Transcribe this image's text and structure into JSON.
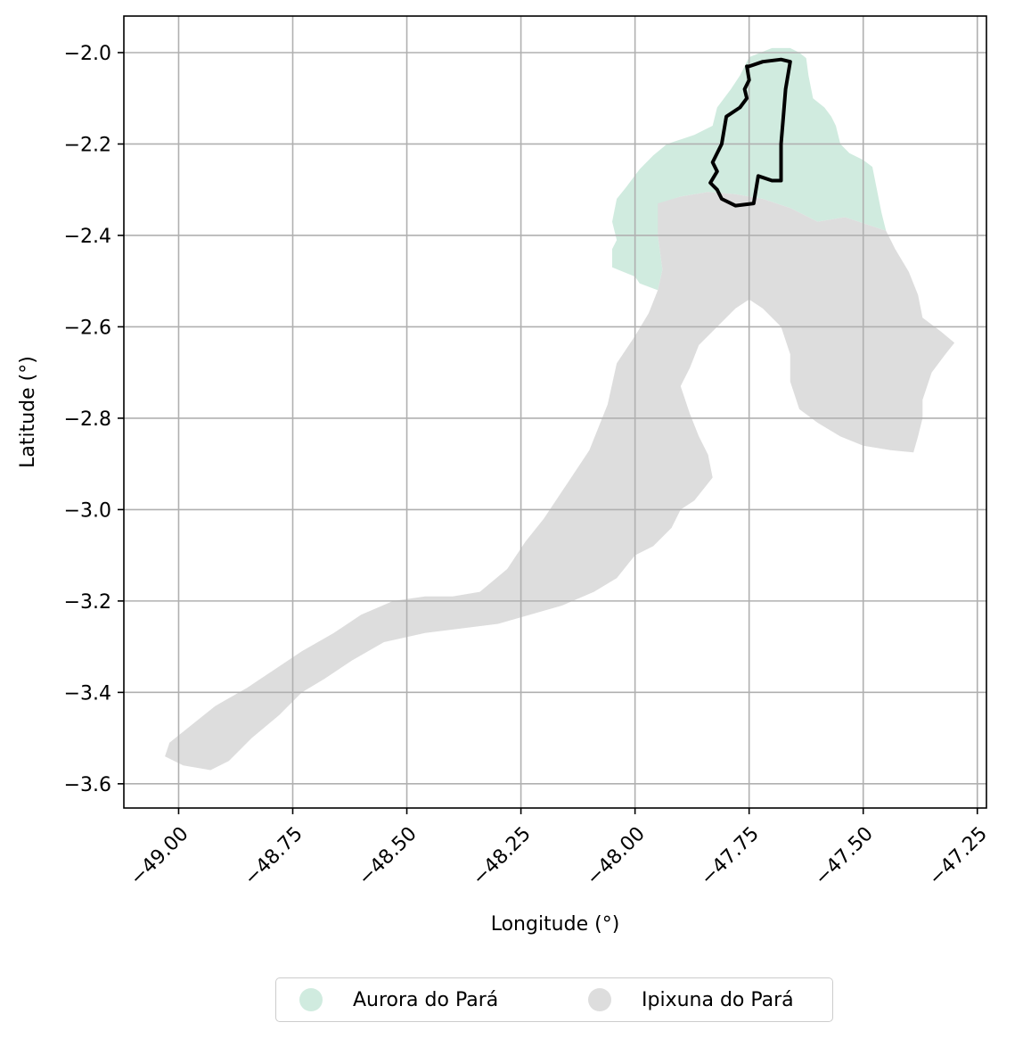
{
  "chart_data": {
    "type": "map",
    "xlabel": "Longitude (°)",
    "ylabel": "Latitude (°)",
    "xlim": [
      -49.12,
      -47.23
    ],
    "ylim": [
      -3.653,
      -1.92
    ],
    "xticks": [
      -49.0,
      -48.75,
      -48.5,
      -48.25,
      -48.0,
      -47.75,
      -47.5,
      -47.25
    ],
    "xtick_labels": [
      "−49.00",
      "−48.75",
      "−48.50",
      "−48.25",
      "−48.00",
      "−47.75",
      "−47.50",
      "−47.25"
    ],
    "yticks": [
      -2.0,
      -2.2,
      -2.4,
      -2.6,
      -2.8,
      -3.0,
      -3.2,
      -3.4,
      -3.6
    ],
    "ytick_labels": [
      "−2.0",
      "−2.2",
      "−2.4",
      "−2.6",
      "−2.8",
      "−3.0",
      "−3.2",
      "−3.4",
      "−3.6"
    ],
    "grid": true,
    "legend_placement": "bottom-center",
    "regions": [
      {
        "name": "Aurora do Pará",
        "color": "#d0ebdf",
        "outline": [
          [
            -47.64,
            -2.0
          ],
          [
            -47.625,
            -2.012
          ],
          [
            -47.62,
            -2.05
          ],
          [
            -47.61,
            -2.1
          ],
          [
            -47.585,
            -2.12
          ],
          [
            -47.57,
            -2.14
          ],
          [
            -47.56,
            -2.16
          ],
          [
            -47.55,
            -2.2
          ],
          [
            -47.53,
            -2.22
          ],
          [
            -47.5,
            -2.235
          ],
          [
            -47.48,
            -2.25
          ],
          [
            -47.47,
            -2.3
          ],
          [
            -47.46,
            -2.35
          ],
          [
            -47.45,
            -2.39
          ],
          [
            -47.54,
            -2.36
          ],
          [
            -47.6,
            -2.37
          ],
          [
            -47.66,
            -2.34
          ],
          [
            -47.72,
            -2.32
          ],
          [
            -47.78,
            -2.31
          ],
          [
            -47.84,
            -2.305
          ],
          [
            -47.9,
            -2.315
          ],
          [
            -47.945,
            -2.33
          ],
          [
            -47.95,
            -2.4
          ],
          [
            -47.94,
            -2.475
          ],
          [
            -47.95,
            -2.52
          ],
          [
            -47.99,
            -2.505
          ],
          [
            -48.0,
            -2.49
          ],
          [
            -48.05,
            -2.47
          ],
          [
            -48.05,
            -2.43
          ],
          [
            -48.04,
            -2.41
          ],
          [
            -48.05,
            -2.37
          ],
          [
            -48.04,
            -2.32
          ],
          [
            -48.02,
            -2.295
          ],
          [
            -47.99,
            -2.255
          ],
          [
            -47.96,
            -2.225
          ],
          [
            -47.93,
            -2.2
          ],
          [
            -47.87,
            -2.18
          ],
          [
            -47.83,
            -2.16
          ],
          [
            -47.82,
            -2.12
          ],
          [
            -47.79,
            -2.08
          ],
          [
            -47.77,
            -2.05
          ],
          [
            -47.75,
            -2.01
          ],
          [
            -47.7,
            -1.99
          ],
          [
            -47.66,
            -1.99
          ]
        ]
      },
      {
        "name": "Ipixuna do Pará",
        "color": "#dddddd",
        "outline": [
          [
            -47.95,
            -2.33
          ],
          [
            -47.9,
            -2.315
          ],
          [
            -47.84,
            -2.305
          ],
          [
            -47.78,
            -2.31
          ],
          [
            -47.72,
            -2.32
          ],
          [
            -47.66,
            -2.34
          ],
          [
            -47.6,
            -2.37
          ],
          [
            -47.54,
            -2.36
          ],
          [
            -47.45,
            -2.39
          ],
          [
            -47.43,
            -2.43
          ],
          [
            -47.4,
            -2.48
          ],
          [
            -47.38,
            -2.53
          ],
          [
            -47.37,
            -2.58
          ],
          [
            -47.33,
            -2.61
          ],
          [
            -47.3,
            -2.635
          ],
          [
            -47.32,
            -2.66
          ],
          [
            -47.35,
            -2.7
          ],
          [
            -47.37,
            -2.76
          ],
          [
            -47.37,
            -2.8
          ],
          [
            -47.38,
            -2.84
          ],
          [
            -47.39,
            -2.875
          ],
          [
            -47.44,
            -2.87
          ],
          [
            -47.5,
            -2.86
          ],
          [
            -47.55,
            -2.84
          ],
          [
            -47.6,
            -2.81
          ],
          [
            -47.64,
            -2.78
          ],
          [
            -47.66,
            -2.72
          ],
          [
            -47.66,
            -2.66
          ],
          [
            -47.68,
            -2.6
          ],
          [
            -47.72,
            -2.56
          ],
          [
            -47.75,
            -2.54
          ],
          [
            -47.78,
            -2.56
          ],
          [
            -47.82,
            -2.6
          ],
          [
            -47.86,
            -2.64
          ],
          [
            -47.88,
            -2.69
          ],
          [
            -47.9,
            -2.73
          ],
          [
            -47.88,
            -2.79
          ],
          [
            -47.86,
            -2.84
          ],
          [
            -47.84,
            -2.88
          ],
          [
            -47.83,
            -2.93
          ],
          [
            -47.87,
            -2.98
          ],
          [
            -47.9,
            -3.0
          ],
          [
            -47.92,
            -3.04
          ],
          [
            -47.96,
            -3.08
          ],
          [
            -48.0,
            -3.1
          ],
          [
            -48.04,
            -3.15
          ],
          [
            -48.09,
            -3.18
          ],
          [
            -48.16,
            -3.21
          ],
          [
            -48.23,
            -3.23
          ],
          [
            -48.3,
            -3.25
          ],
          [
            -48.38,
            -3.26
          ],
          [
            -48.46,
            -3.27
          ],
          [
            -48.55,
            -3.29
          ],
          [
            -48.62,
            -3.33
          ],
          [
            -48.68,
            -3.37
          ],
          [
            -48.73,
            -3.4
          ],
          [
            -48.78,
            -3.45
          ],
          [
            -48.84,
            -3.5
          ],
          [
            -48.89,
            -3.55
          ],
          [
            -48.93,
            -3.57
          ],
          [
            -48.99,
            -3.56
          ],
          [
            -49.03,
            -3.54
          ],
          [
            -49.02,
            -3.51
          ],
          [
            -48.97,
            -3.47
          ],
          [
            -48.92,
            -3.43
          ],
          [
            -48.85,
            -3.39
          ],
          [
            -48.79,
            -3.35
          ],
          [
            -48.73,
            -3.31
          ],
          [
            -48.66,
            -3.27
          ],
          [
            -48.6,
            -3.23
          ],
          [
            -48.53,
            -3.2
          ],
          [
            -48.46,
            -3.19
          ],
          [
            -48.4,
            -3.19
          ],
          [
            -48.34,
            -3.18
          ],
          [
            -48.28,
            -3.13
          ],
          [
            -48.24,
            -3.07
          ],
          [
            -48.2,
            -3.02
          ],
          [
            -48.16,
            -2.96
          ],
          [
            -48.1,
            -2.87
          ],
          [
            -48.06,
            -2.77
          ],
          [
            -48.04,
            -2.68
          ],
          [
            -48.0,
            -2.62
          ],
          [
            -47.97,
            -2.57
          ],
          [
            -47.95,
            -2.52
          ],
          [
            -47.94,
            -2.475
          ],
          [
            -47.95,
            -2.4
          ]
        ]
      }
    ],
    "highlight_outline": {
      "color": "#000000",
      "points": [
        [
          -47.75,
          -2.03
        ],
        [
          -47.72,
          -2.02
        ],
        [
          -47.68,
          -2.015
        ],
        [
          -47.66,
          -2.02
        ],
        [
          -47.67,
          -2.08
        ],
        [
          -47.675,
          -2.14
        ],
        [
          -47.68,
          -2.2
        ],
        [
          -47.68,
          -2.28
        ],
        [
          -47.7,
          -2.28
        ],
        [
          -47.73,
          -2.27
        ],
        [
          -47.74,
          -2.33
        ],
        [
          -47.78,
          -2.335
        ],
        [
          -47.81,
          -2.32
        ],
        [
          -47.82,
          -2.3
        ],
        [
          -47.835,
          -2.285
        ],
        [
          -47.82,
          -2.26
        ],
        [
          -47.83,
          -2.24
        ],
        [
          -47.81,
          -2.2
        ],
        [
          -47.8,
          -2.14
        ],
        [
          -47.77,
          -2.12
        ],
        [
          -47.755,
          -2.1
        ],
        [
          -47.76,
          -2.08
        ],
        [
          -47.75,
          -2.06
        ],
        [
          -47.755,
          -2.03
        ]
      ]
    },
    "legend": [
      {
        "label": "Aurora do Pará",
        "color": "#d0ebdf"
      },
      {
        "label": "Ipixuna do Pará",
        "color": "#dddddd"
      }
    ]
  }
}
